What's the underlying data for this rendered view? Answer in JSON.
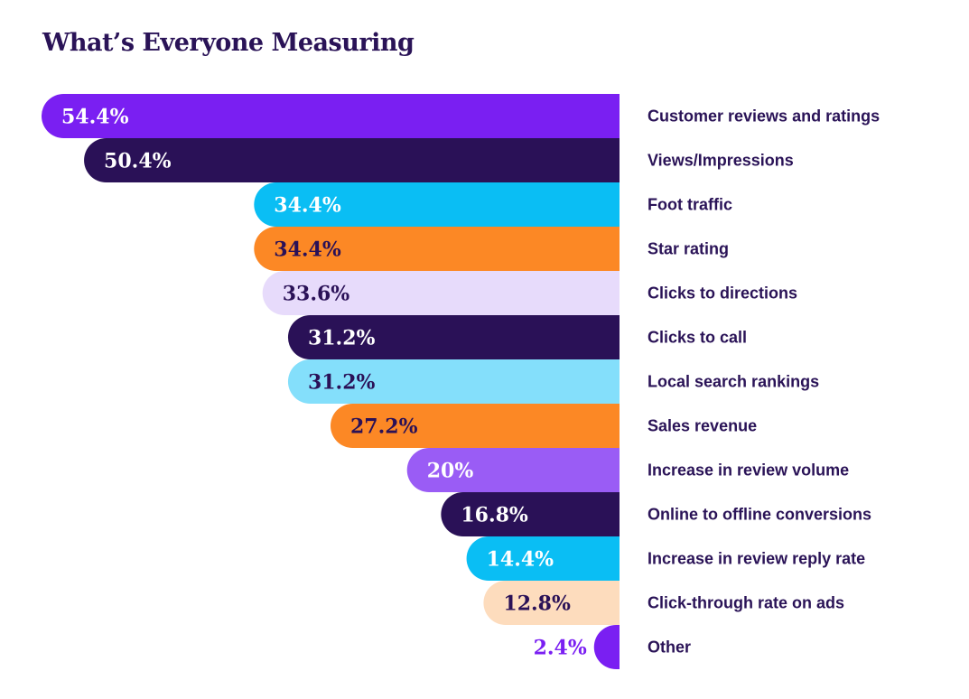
{
  "title": "What’s Everyone Measuring",
  "chart_data": {
    "type": "bar",
    "orientation": "horizontal",
    "title": "What’s Everyone Measuring",
    "xlabel": "",
    "ylabel": "",
    "xlim": [
      0,
      54.4
    ],
    "grid": false,
    "categories": [
      "Customer reviews and ratings",
      "Views/Impressions",
      "Foot traffic",
      "Star rating",
      "Clicks to directions",
      "Clicks to call",
      "Local search rankings",
      "Sales revenue",
      "Increase in review volume",
      "Online to offline conversions",
      "Increase in review reply rate",
      "Click-through rate on ads",
      "Other"
    ],
    "values": [
      54.4,
      50.4,
      34.4,
      34.4,
      33.6,
      31.2,
      31.2,
      27.2,
      20,
      16.8,
      14.4,
      12.8,
      2.4
    ],
    "value_labels": [
      "54.4%",
      "50.4%",
      "34.4%",
      "34.4%",
      "33.6%",
      "31.2%",
      "31.2%",
      "27.2%",
      "20%",
      "16.8%",
      "14.4%",
      "12.8%",
      "2.4%"
    ],
    "bar_colors": [
      "#7a1ff2",
      "#2a1157",
      "#0abef4",
      "#fc8825",
      "#e7dbfb",
      "#2a1157",
      "#84dffb",
      "#fc8825",
      "#9a5cf5",
      "#2a1157",
      "#0abef4",
      "#fddcbd",
      "#7a1ff2"
    ],
    "value_colors": [
      "#ffffff",
      "#ffffff",
      "#ffffff",
      "#2a1157",
      "#2a1157",
      "#ffffff",
      "#2a1157",
      "#2a1157",
      "#ffffff",
      "#ffffff",
      "#ffffff",
      "#2a1157",
      "#7a1ff2"
    ]
  }
}
